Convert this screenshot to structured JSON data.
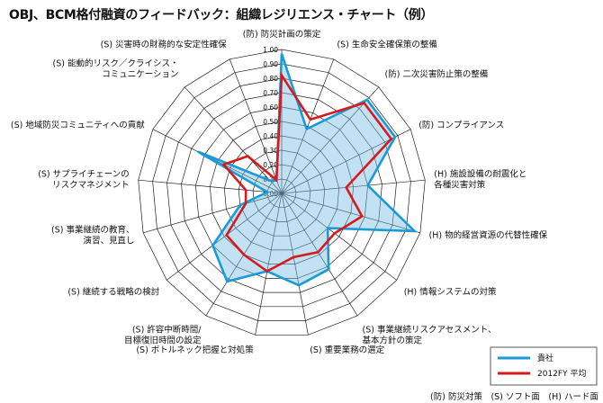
{
  "title": "OBJ、BCM格付融資のフィードバック：組織レジリエンス・チャート（例）",
  "chart_data": {
    "type": "radar",
    "rmax": 1.0,
    "ticks": [
      "0.00",
      "0.10",
      "0.20",
      "0.30",
      "0.40",
      "0.50",
      "0.60",
      "0.70",
      "0.80",
      "0.90",
      "1.00"
    ],
    "axes": [
      [
        "(防) 防災計画の策定"
      ],
      [
        "(S) 生命安全確保策の整備"
      ],
      [
        "(防) 二次災害防止策の整備"
      ],
      [
        "(防) コンプライアンス"
      ],
      [
        "(H) 施設設備の耐震化と",
        "各種災害対策"
      ],
      [
        "(H) 物的経営資源の代替性確保"
      ],
      [
        "(H) 情報システムの対策"
      ],
      [
        "(S) 事業継続リスクアセスメント、",
        "基本方針の策定"
      ],
      [
        "(S) 重要業務の選定"
      ],
      [
        "(S) ボトルネック把握と対処策"
      ],
      [
        "(S) 許容中断時間/",
        "目標復旧時間の設定"
      ],
      [
        "(S) 継続する戦略の検討"
      ],
      [
        "(S) 事業継続の教育、",
        "演習、見直し"
      ],
      [
        "(S) サプライチェーンの",
        "リスクマネジメント"
      ],
      [
        "(S) 地域防災コミュニティへの貢献"
      ],
      [
        "(S) 能動的リスク／クライシス・",
        "コミュニケーション"
      ],
      [
        "(S) 災害時の財務的な安定性確保"
      ]
    ],
    "series": [
      {
        "name": "貴社",
        "color": "#1a9ad6",
        "values": [
          0.97,
          0.48,
          0.88,
          0.88,
          0.6,
          0.96,
          0.4,
          0.62,
          0.65,
          0.55,
          0.72,
          0.6,
          0.3,
          0.1,
          0.65,
          0.12,
          0.1
        ]
      },
      {
        "name": "2012FY 平均",
        "color": "#d7191c",
        "values": [
          0.82,
          0.55,
          0.85,
          0.85,
          0.45,
          0.58,
          0.46,
          0.48,
          0.45,
          0.55,
          0.5,
          0.48,
          0.26,
          0.25,
          0.45,
          0.35,
          0.1
        ]
      }
    ]
  },
  "footer_text": "(防) 防災対策　(S) ソフト面　(H) ハード面"
}
